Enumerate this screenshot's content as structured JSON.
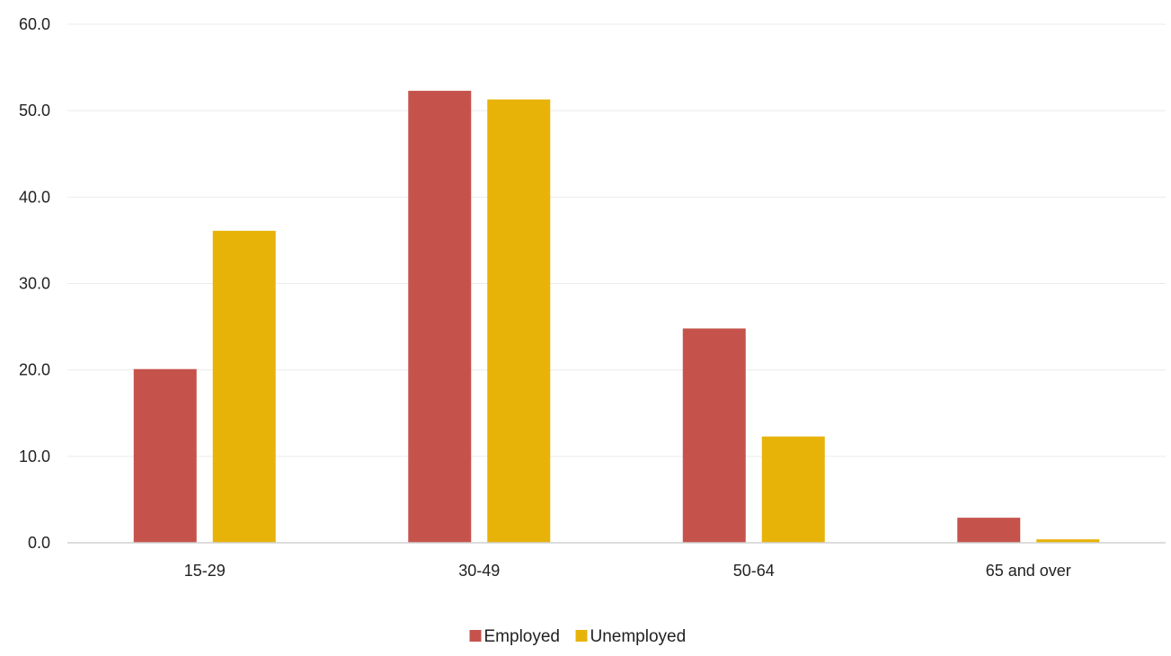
{
  "chart_data": {
    "type": "bar",
    "title": "",
    "xlabel": "",
    "ylabel": "",
    "categories": [
      "15-29",
      "30-49",
      "50-64",
      "65 and over"
    ],
    "series": [
      {
        "name": "Employed",
        "color": "#C5534C",
        "values": [
          20.1,
          52.3,
          24.8,
          2.9
        ]
      },
      {
        "name": "Unemployed",
        "color": "#E8B308",
        "values": [
          36.1,
          51.3,
          12.3,
          0.4
        ]
      }
    ],
    "ylim": [
      0,
      60
    ],
    "yticks": [
      "0.0",
      "10.0",
      "20.0",
      "30.0",
      "40.0",
      "50.0",
      "60.0"
    ],
    "grid": true,
    "legend_position": "bottom"
  }
}
